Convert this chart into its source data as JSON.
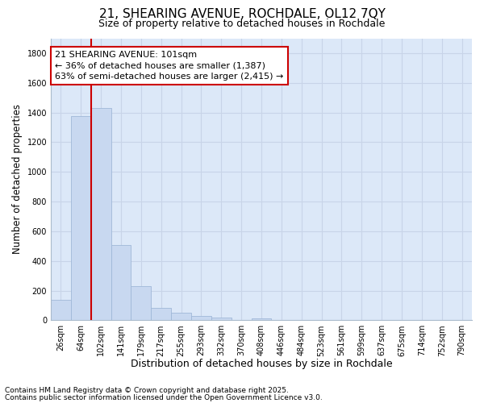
{
  "title": "21, SHEARING AVENUE, ROCHDALE, OL12 7QY",
  "subtitle": "Size of property relative to detached houses in Rochdale",
  "xlabel": "Distribution of detached houses by size in Rochdale",
  "ylabel": "Number of detached properties",
  "categories": [
    "26sqm",
    "64sqm",
    "102sqm",
    "141sqm",
    "179sqm",
    "217sqm",
    "255sqm",
    "293sqm",
    "332sqm",
    "370sqm",
    "408sqm",
    "446sqm",
    "484sqm",
    "523sqm",
    "561sqm",
    "599sqm",
    "637sqm",
    "675sqm",
    "714sqm",
    "752sqm",
    "790sqm"
  ],
  "values": [
    140,
    1375,
    1430,
    505,
    230,
    85,
    52,
    28,
    18,
    0,
    12,
    0,
    0,
    0,
    0,
    0,
    0,
    0,
    0,
    0,
    0
  ],
  "bar_color": "#c8d8f0",
  "bar_edge_color": "#a0b8d8",
  "vline_x_index": 2,
  "vline_color": "#cc0000",
  "annotation_text": "21 SHEARING AVENUE: 101sqm\n← 36% of detached houses are smaller (1,387)\n63% of semi-detached houses are larger (2,415) →",
  "annotation_box_facecolor": "#ffffff",
  "annotation_box_edgecolor": "#cc0000",
  "ylim": [
    0,
    1900
  ],
  "yticks": [
    0,
    200,
    400,
    600,
    800,
    1000,
    1200,
    1400,
    1600,
    1800
  ],
  "grid_color": "#c8d4e8",
  "plot_bg_color": "#dce8f8",
  "fig_bg_color": "#ffffff",
  "footer_line1": "Contains HM Land Registry data © Crown copyright and database right 2025.",
  "footer_line2": "Contains public sector information licensed under the Open Government Licence v3.0.",
  "title_fontsize": 11,
  "subtitle_fontsize": 9,
  "tick_fontsize": 7,
  "ylabel_fontsize": 8.5,
  "xlabel_fontsize": 9,
  "annotation_fontsize": 8,
  "footer_fontsize": 6.5
}
